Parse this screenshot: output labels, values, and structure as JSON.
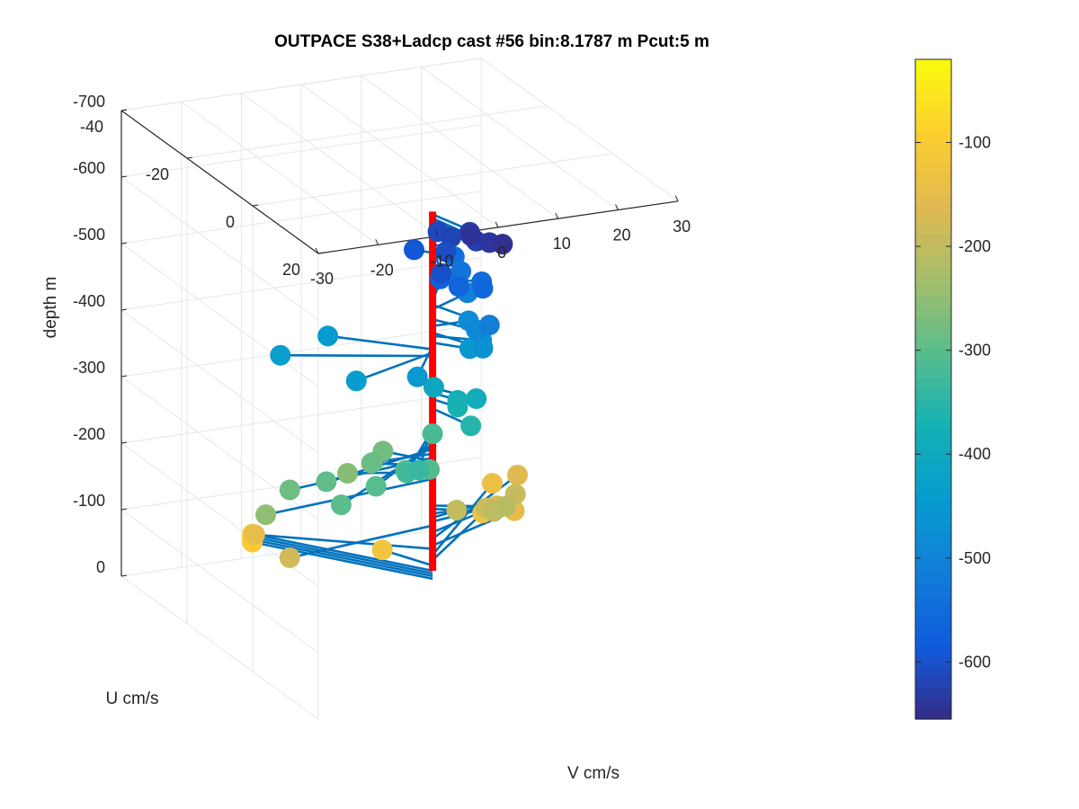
{
  "chart_data": {
    "type": "scatter",
    "projection": "3d",
    "title": "OUTPACE S38+Ladcp cast #56 bin:8.1787 m  Pcut:5 m",
    "xlabel": "V cm/s",
    "ylabel": "U cm/s",
    "zlabel": "depth m",
    "xlim": [
      -30,
      30
    ],
    "ylim": [
      -40,
      20
    ],
    "zlim": [
      -700,
      0
    ],
    "x_ticks": [
      -30,
      -20,
      -10,
      0,
      10,
      20,
      30
    ],
    "y_ticks": [
      -40,
      -20,
      0,
      20
    ],
    "z_ticks": [
      0,
      -100,
      -200,
      -300,
      -400,
      -500,
      -600,
      -700
    ],
    "grid": true,
    "colormap": "parula",
    "colorbar": {
      "ticks": [
        -100,
        -200,
        -300,
        -400,
        -500,
        -600
      ],
      "clim": [
        -655,
        -20
      ],
      "location": "right"
    },
    "series": [
      {
        "type": "stem",
        "color": "#0072BD",
        "points": [
          {
            "depth": -100,
            "u": -22,
            "v": -18
          },
          {
            "depth": -104,
            "u": -22,
            "v": -18
          },
          {
            "depth": -108,
            "u": -22,
            "v": -18
          },
          {
            "depth": -112,
            "u": -22,
            "v": -18
          },
          {
            "depth": -120,
            "u": -8,
            "v": -4
          },
          {
            "depth": -128,
            "u": -14,
            "v": 16
          },
          {
            "depth": -136,
            "u": -22,
            "v": 22
          },
          {
            "depth": -145,
            "u": -14,
            "v": -22
          },
          {
            "depth": -150,
            "u": -8,
            "v": 18
          },
          {
            "depth": -160,
            "u": -18,
            "v": 24
          },
          {
            "depth": -170,
            "u": -6,
            "v": 14
          },
          {
            "depth": -180,
            "u": 4,
            "v": -26
          },
          {
            "depth": -186,
            "u": -2,
            "v": 10
          },
          {
            "depth": -192,
            "u": -4,
            "v": 16
          },
          {
            "depth": -198,
            "u": 0,
            "v": 4
          },
          {
            "depth": -205,
            "u": 4,
            "v": 8
          },
          {
            "depth": -210,
            "u": 4,
            "v": 10
          },
          {
            "depth": -250,
            "u": 4,
            "v": -30
          },
          {
            "depth": -260,
            "u": -4,
            "v": -12
          },
          {
            "depth": -270,
            "u": -4,
            "v": -8
          },
          {
            "depth": -277,
            "u": -6,
            "v": -5
          },
          {
            "depth": -282,
            "u": 4,
            "v": -26
          },
          {
            "depth": -288,
            "u": 0,
            "v": -10
          },
          {
            "depth": -295,
            "u": 6,
            "v": -21
          },
          {
            "depth": -300,
            "u": 16,
            "v": -24
          },
          {
            "depth": -303,
            "u": 12,
            "v": -16
          },
          {
            "depth": -308,
            "u": 10,
            "v": -6
          },
          {
            "depth": -312,
            "u": 10,
            "v": -10
          },
          {
            "depth": -318,
            "u": 0,
            "v": 0
          },
          {
            "depth": -325,
            "u": 14,
            "v": -12
          },
          {
            "depth": -335,
            "u": 16,
            "v": -11
          },
          {
            "depth": -356,
            "u": 8,
            "v": 2
          },
          {
            "depth": -370,
            "u": 4,
            "v": 2
          },
          {
            "depth": -380,
            "u": 4,
            "v": 2
          },
          {
            "depth": -387,
            "u": 6,
            "v": 4
          },
          {
            "depth": -405,
            "u": 4,
            "v": -2
          },
          {
            "depth": -435,
            "u": -8,
            "v": -21
          },
          {
            "depth": -440,
            "u": 6,
            "v": -16
          },
          {
            "depth": -445,
            "u": -10,
            "v": -12
          },
          {
            "depth": -450,
            "u": 10,
            "v": -8
          },
          {
            "depth": -455,
            "u": 4,
            "v": 4
          },
          {
            "depth": -465,
            "u": 4,
            "v": 6
          },
          {
            "depth": -470,
            "u": 8,
            "v": 4
          },
          {
            "depth": -480,
            "u": 0,
            "v": 6
          },
          {
            "depth": -490,
            "u": 6,
            "v": 4
          },
          {
            "depth": -505,
            "u": -4,
            "v": 8
          },
          {
            "depth": -512,
            "u": 10,
            "v": 4
          },
          {
            "depth": -518,
            "u": -8,
            "v": 6
          },
          {
            "depth": -530,
            "u": -6,
            "v": 8
          },
          {
            "depth": -545,
            "u": -8,
            "v": 8
          },
          {
            "depth": -553,
            "u": 4,
            "v": 6
          },
          {
            "depth": -560,
            "u": 8,
            "v": 4
          },
          {
            "depth": -568,
            "u": 8,
            "v": 0
          },
          {
            "depth": -575,
            "u": 6,
            "v": -2
          },
          {
            "depth": -590,
            "u": -2,
            "v": -2
          },
          {
            "depth": -600,
            "u": 10,
            "v": -4
          },
          {
            "depth": -606,
            "u": 4,
            "v": 0
          },
          {
            "depth": -612,
            "u": -2,
            "v": 2
          },
          {
            "depth": -618,
            "u": 2,
            "v": 2
          },
          {
            "depth": -624,
            "u": 6,
            "v": 4
          },
          {
            "depth": -630,
            "u": 4,
            "v": 4
          },
          {
            "depth": -636,
            "u": 10,
            "v": 4
          },
          {
            "depth": -642,
            "u": 8,
            "v": 2
          },
          {
            "depth": -648,
            "u": 14,
            "v": 4
          }
        ]
      },
      {
        "type": "line",
        "color": "#FF0000",
        "name": "",
        "points": [
          {
            "u": 0,
            "v": 0,
            "depth": -112
          },
          {
            "u": 0,
            "v": 0,
            "depth": -652
          }
        ]
      }
    ]
  }
}
